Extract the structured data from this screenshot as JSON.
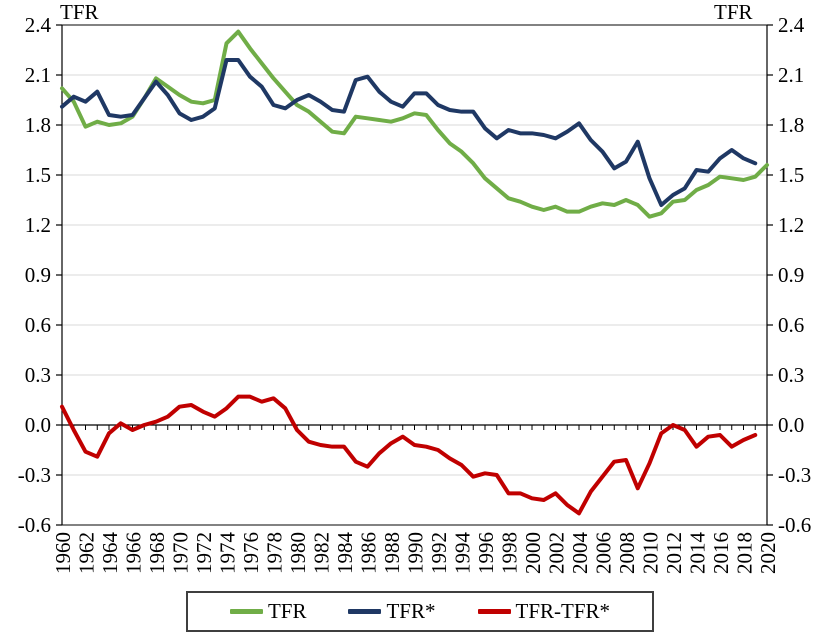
{
  "chart_data": {
    "type": "line",
    "title_left": "TFR",
    "title_right": "TFR",
    "x_start": 1960,
    "x_end": 2020,
    "x_label_step": 2,
    "ylim": [
      -0.6,
      2.4
    ],
    "y_tick_step": 0.3,
    "grid": true,
    "legend_position": "bottom",
    "colors": {
      "grid": "#d9d9d9",
      "border": "#595959",
      "axis": "#000000",
      "legend_border": "#3f3f3f"
    },
    "series": [
      {
        "name": "TFR",
        "color": "#70AD47",
        "start_year": 1960,
        "end_year": 2020,
        "values": [
          2.02,
          1.94,
          1.79,
          1.82,
          1.8,
          1.81,
          1.85,
          1.96,
          2.08,
          2.03,
          1.98,
          1.94,
          1.93,
          1.95,
          2.29,
          2.36,
          2.26,
          2.17,
          2.08,
          2.0,
          1.92,
          1.88,
          1.82,
          1.76,
          1.75,
          1.85,
          1.84,
          1.83,
          1.82,
          1.84,
          1.87,
          1.86,
          1.77,
          1.69,
          1.64,
          1.57,
          1.48,
          1.42,
          1.36,
          1.34,
          1.31,
          1.29,
          1.31,
          1.28,
          1.28,
          1.31,
          1.33,
          1.32,
          1.35,
          1.32,
          1.25,
          1.27,
          1.34,
          1.35,
          1.41,
          1.44,
          1.49,
          1.48,
          1.47,
          1.49,
          1.56
        ]
      },
      {
        "name": "TFR*",
        "color": "#1F3864",
        "start_year": 1960,
        "end_year": 2019,
        "values": [
          1.91,
          1.97,
          1.94,
          2.0,
          1.86,
          1.85,
          1.86,
          1.96,
          2.06,
          1.98,
          1.87,
          1.83,
          1.85,
          1.9,
          2.19,
          2.19,
          2.09,
          2.03,
          1.92,
          1.9,
          1.95,
          1.98,
          1.94,
          1.89,
          1.88,
          2.07,
          2.09,
          2.0,
          1.94,
          1.91,
          1.99,
          1.99,
          1.92,
          1.89,
          1.88,
          1.88,
          1.78,
          1.72,
          1.77,
          1.75,
          1.75,
          1.74,
          1.72,
          1.76,
          1.81,
          1.71,
          1.64,
          1.54,
          1.58,
          1.7,
          1.48,
          1.32,
          1.38,
          1.42,
          1.53,
          1.52,
          1.6,
          1.65,
          1.6,
          1.57
        ]
      },
      {
        "name": "TFR-TFR*",
        "color": "#C00000",
        "start_year": 1960,
        "end_year": 2019,
        "values": [
          0.11,
          -0.03,
          -0.16,
          -0.19,
          -0.05,
          0.01,
          -0.03,
          0.0,
          0.02,
          0.05,
          0.11,
          0.12,
          0.08,
          0.05,
          0.1,
          0.17,
          0.17,
          0.14,
          0.16,
          0.1,
          -0.03,
          -0.1,
          -0.12,
          -0.13,
          -0.13,
          -0.22,
          -0.25,
          -0.17,
          -0.11,
          -0.07,
          -0.12,
          -0.13,
          -0.15,
          -0.2,
          -0.24,
          -0.31,
          -0.29,
          -0.3,
          -0.41,
          -0.41,
          -0.44,
          -0.45,
          -0.41,
          -0.48,
          -0.53,
          -0.4,
          -0.31,
          -0.22,
          -0.21,
          -0.38,
          -0.23,
          -0.05,
          0.0,
          -0.03,
          -0.13,
          -0.07,
          -0.06,
          -0.13,
          -0.09,
          -0.06
        ]
      }
    ]
  }
}
